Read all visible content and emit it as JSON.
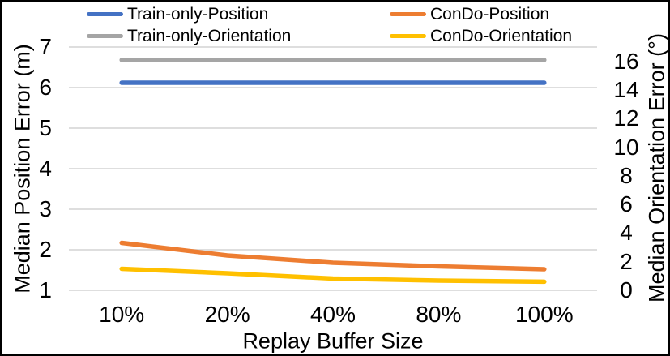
{
  "chart_data": {
    "type": "line",
    "categories": [
      "10%",
      "20%",
      "40%",
      "80%",
      "100%"
    ],
    "x_label": "Replay Buffer Size",
    "grid": true,
    "legend_position": "top",
    "left_axis": {
      "label": "Median Position Error (m)",
      "min": 1,
      "max": 7,
      "ticks": [
        1,
        2,
        3,
        4,
        5,
        6,
        7
      ]
    },
    "right_axis": {
      "label": "Median Orientation Error (°)",
      "min": 0,
      "max": 17,
      "ticks": [
        0,
        2,
        4,
        6,
        8,
        10,
        12,
        14,
        16
      ]
    },
    "colors": {
      "gridline": "#D9D9D9",
      "text": "#000000",
      "frame": "#000000"
    },
    "series": [
      {
        "name": "Train-only-Position",
        "axis": "left",
        "color": "#4472C4",
        "values": [
          6.12,
          6.12,
          6.12,
          6.12,
          6.12
        ]
      },
      {
        "name": "ConDo-Position",
        "axis": "left",
        "color": "#ED7D31",
        "values": [
          2.17,
          1.86,
          1.68,
          1.59,
          1.52
        ]
      },
      {
        "name": "Train-only-Orientation",
        "axis": "right",
        "color": "#A5A5A5",
        "values": [
          16.1,
          16.1,
          16.1,
          16.1,
          16.1
        ]
      },
      {
        "name": "ConDo-Orientation",
        "axis": "right",
        "color": "#FFC000",
        "values": [
          1.5,
          1.19,
          0.82,
          0.68,
          0.6
        ]
      }
    ]
  }
}
